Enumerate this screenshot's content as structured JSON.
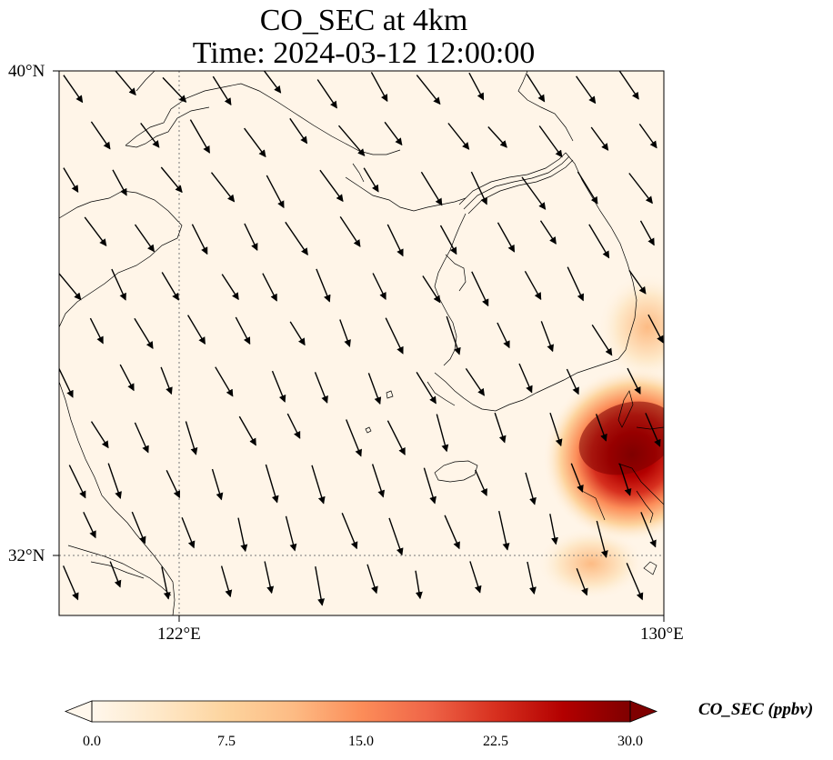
{
  "title": "CO_SEC at 4km",
  "subtitle": "Time: 2024-03-12 12:00:00",
  "axes": {
    "lat_ticks": [
      "40°N",
      "32°N"
    ],
    "lon_ticks": [
      "122°E",
      "130°E"
    ]
  },
  "colorbar": {
    "label": "CO_SEC (ppbv)",
    "ticks": [
      "0.0",
      "7.5",
      "15.0",
      "22.5",
      "30.0"
    ],
    "min": 0,
    "max": 30,
    "extend": "both",
    "colormap": "OrRd",
    "colors": [
      "#fff7ec",
      "#fee8c8",
      "#fdd49e",
      "#fdbb84",
      "#fc8d59",
      "#ef6548",
      "#d7301f",
      "#b30000",
      "#7f0000"
    ]
  },
  "map": {
    "extent": {
      "lon_min": 120,
      "lon_max": 130,
      "lat_min": 31,
      "lat_max": 40
    },
    "gridlines": "dotted at 122°E and 32°N",
    "background_color": "#fff5e8",
    "wind_vectors": "black arrows, predominantly pointing south-southeast",
    "plume": "high CO_SEC concentrations (up to ~30 ppbv) near southeastern edge around 33.5°N 129.5°E over Kyushu, decaying north-westward"
  }
}
